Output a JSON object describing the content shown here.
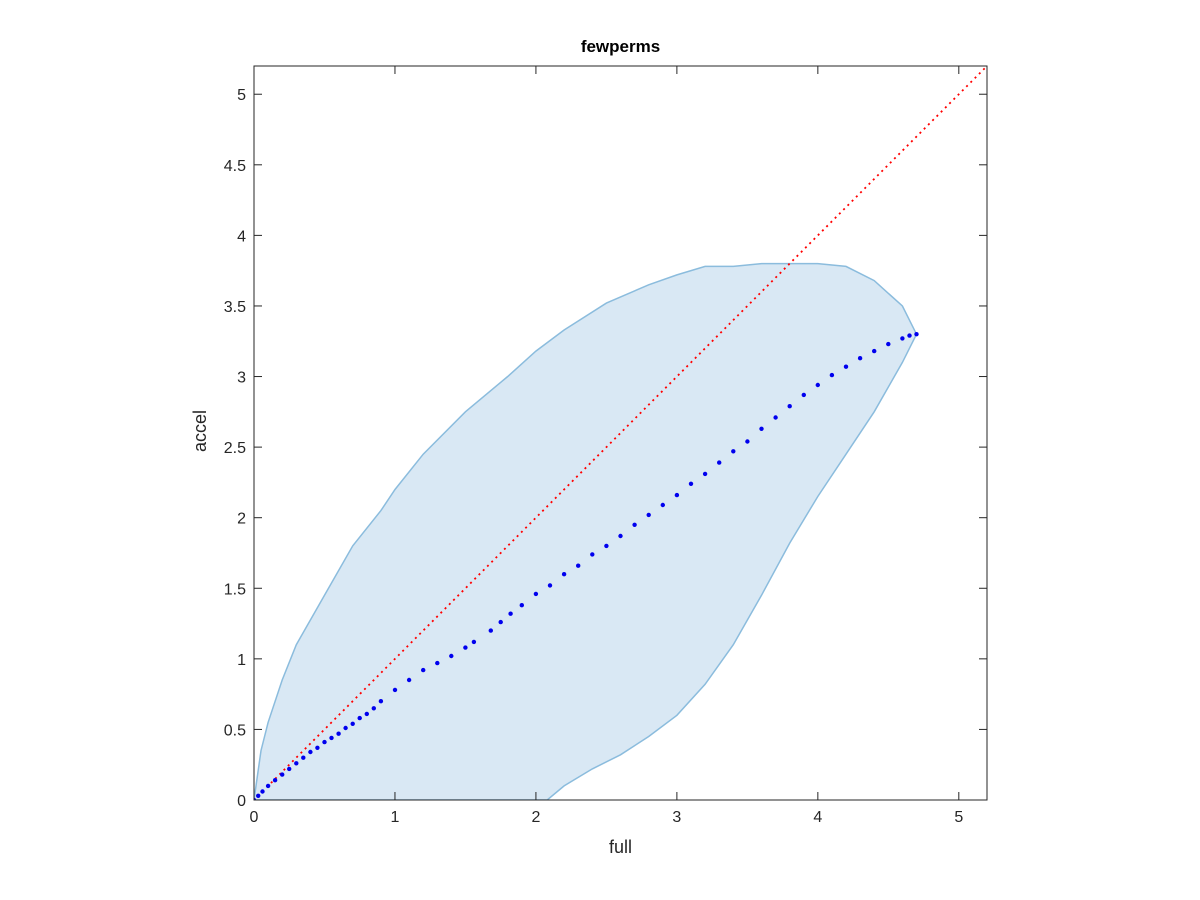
{
  "chart_data": {
    "type": "scatter",
    "title": "fewperms",
    "xlabel": "full",
    "ylabel": "accel",
    "xlim": [
      0,
      5.2
    ],
    "ylim": [
      0,
      5.2
    ],
    "xticks": [
      "0",
      "1",
      "2",
      "3",
      "4",
      "5"
    ],
    "yticks": [
      "0",
      "0.5",
      "1",
      "1.5",
      "2",
      "2.5",
      "3",
      "3.5",
      "4",
      "4.5",
      "5"
    ],
    "grid": false,
    "colors": {
      "region_fill": "#d9e8f4",
      "region_edge": "#8bbcdd",
      "points": "#0000ee",
      "reference": "#ff0000",
      "axes": "#262626"
    },
    "series": [
      {
        "type": "area",
        "upper": {
          "x": [
            0,
            0.05,
            0.1,
            0.2,
            0.3,
            0.5,
            0.7,
            0.9,
            1.0,
            1.2,
            1.5,
            1.8,
            2.0,
            2.2,
            2.5,
            2.8,
            3.0,
            3.2,
            3.4,
            3.6,
            3.8,
            4.0,
            4.2,
            4.4,
            4.6,
            4.7
          ],
          "y": [
            0,
            0.35,
            0.55,
            0.85,
            1.1,
            1.45,
            1.8,
            2.05,
            2.2,
            2.45,
            2.75,
            3.0,
            3.18,
            3.33,
            3.52,
            3.65,
            3.72,
            3.78,
            3.78,
            3.8,
            3.8,
            3.8,
            3.78,
            3.68,
            3.5,
            3.3
          ]
        },
        "lower": {
          "x": [
            0,
            1.0,
            2.0,
            2.08,
            2.2,
            2.4,
            2.6,
            2.8,
            3.0,
            3.2,
            3.4,
            3.6,
            3.8,
            4.0,
            4.2,
            4.4,
            4.6,
            4.7
          ],
          "y": [
            0,
            0,
            0,
            0,
            0.1,
            0.22,
            0.32,
            0.45,
            0.6,
            0.82,
            1.1,
            1.45,
            1.82,
            2.15,
            2.45,
            2.75,
            3.1,
            3.3
          ]
        }
      },
      {
        "type": "scatter",
        "x": [
          0,
          0.03,
          0.06,
          0.1,
          0.15,
          0.2,
          0.25,
          0.3,
          0.35,
          0.4,
          0.45,
          0.5,
          0.55,
          0.6,
          0.65,
          0.7,
          0.75,
          0.8,
          0.85,
          0.9,
          1.0,
          1.1,
          1.2,
          1.3,
          1.4,
          1.5,
          1.56,
          1.68,
          1.75,
          1.82,
          1.9,
          2.0,
          2.1,
          2.2,
          2.3,
          2.4,
          2.5,
          2.6,
          2.7,
          2.8,
          2.9,
          3.0,
          3.1,
          3.2,
          3.3,
          3.4,
          3.5,
          3.6,
          3.7,
          3.8,
          3.9,
          4.0,
          4.1,
          4.2,
          4.3,
          4.4,
          4.5,
          4.6,
          4.65,
          4.7
        ],
        "y": [
          0,
          0.03,
          0.06,
          0.1,
          0.14,
          0.18,
          0.22,
          0.26,
          0.3,
          0.34,
          0.37,
          0.41,
          0.44,
          0.47,
          0.51,
          0.54,
          0.58,
          0.61,
          0.65,
          0.7,
          0.78,
          0.85,
          0.92,
          0.97,
          1.02,
          1.08,
          1.12,
          1.2,
          1.26,
          1.32,
          1.38,
          1.46,
          1.52,
          1.6,
          1.66,
          1.74,
          1.8,
          1.87,
          1.95,
          2.02,
          2.09,
          2.16,
          2.24,
          2.31,
          2.39,
          2.47,
          2.54,
          2.63,
          2.71,
          2.79,
          2.87,
          2.94,
          3.01,
          3.07,
          3.13,
          3.18,
          3.23,
          3.27,
          3.29,
          3.3
        ]
      },
      {
        "type": "line",
        "style": "dotted",
        "x": [
          0,
          5.2
        ],
        "y": [
          0,
          5.2
        ]
      }
    ]
  }
}
